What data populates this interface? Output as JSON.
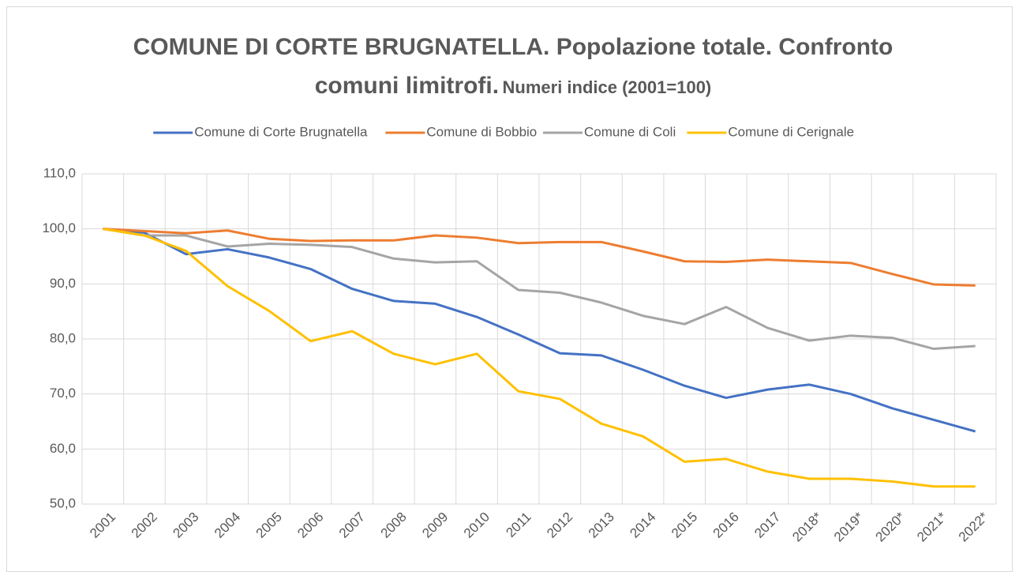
{
  "chart_data": {
    "type": "line",
    "title": "COMUNE DI CORTE BRUGNATELLA. Popolazione totale. Confronto comuni limitrofi.",
    "subtitle": "Numeri indice (2001=100)",
    "categories": [
      "2001",
      "2002",
      "2003",
      "2004",
      "2005",
      "2006",
      "2007",
      "2008",
      "2009",
      "2010",
      "2011",
      "2012",
      "2013",
      "2014",
      "2015",
      "2016",
      "2017",
      "2018*",
      "2019*",
      "2020*",
      "2021*",
      "2022*"
    ],
    "series": [
      {
        "name": "Comune di Corte Brugnatella",
        "color": "#4472c4",
        "values": [
          100,
          99.3,
          95.4,
          96.3,
          94.8,
          92.7,
          89.1,
          86.9,
          86.4,
          84.0,
          80.8,
          77.4,
          77.0,
          74.4,
          71.5,
          69.3,
          70.8,
          71.7,
          70.0,
          67.4,
          65.3,
          63.2
        ]
      },
      {
        "name": "Comune di Bobbio",
        "color": "#ed7d31",
        "values": [
          100,
          99.6,
          99.2,
          99.7,
          98.2,
          97.8,
          97.9,
          97.9,
          98.8,
          98.4,
          97.4,
          97.6,
          97.6,
          95.9,
          94.1,
          94.0,
          94.4,
          94.1,
          93.8,
          91.8,
          89.9,
          89.7
        ]
      },
      {
        "name": "Comune di Coli",
        "color": "#a5a5a5",
        "values": [
          100,
          98.8,
          98.8,
          96.8,
          97.3,
          97.1,
          96.7,
          94.6,
          93.9,
          94.1,
          88.9,
          88.4,
          86.6,
          84.2,
          82.7,
          85.8,
          82.0,
          79.7,
          80.6,
          80.2,
          78.2,
          78.7
        ]
      },
      {
        "name": "Comune di Cerignale",
        "color": "#ffc000",
        "values": [
          100,
          98.8,
          96.0,
          89.6,
          85.1,
          79.6,
          81.4,
          77.3,
          75.4,
          77.3,
          70.5,
          69.1,
          64.6,
          62.3,
          57.7,
          58.2,
          55.9,
          54.6,
          54.6,
          54.1,
          53.2,
          53.2
        ]
      }
    ],
    "ylim": [
      50,
      110
    ],
    "yticks": [
      {
        "value": 50,
        "label": "50,0"
      },
      {
        "value": 60,
        "label": "60,0"
      },
      {
        "value": 70,
        "label": "70,0"
      },
      {
        "value": 80,
        "label": "80,0"
      },
      {
        "value": 90,
        "label": "90,0"
      },
      {
        "value": 100,
        "label": "100,0"
      },
      {
        "value": 110,
        "label": "110,0"
      }
    ],
    "grid": true,
    "legend": "top"
  }
}
